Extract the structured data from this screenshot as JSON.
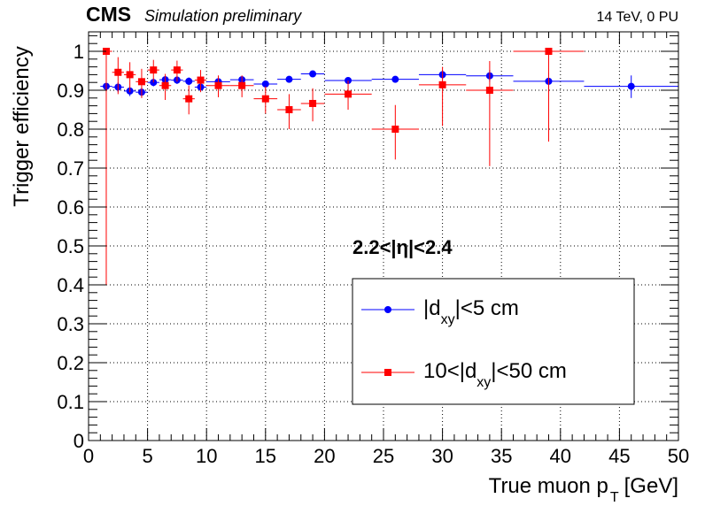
{
  "header": {
    "experiment": "CMS",
    "tag": "Simulation preliminary",
    "conditions": "14 TeV, 0 PU"
  },
  "annotation": "2.2<|η|<2.4",
  "chart_data": {
    "type": "scatter",
    "xlabel_main": "True muon p",
    "xlabel_sub": "T",
    "xlabel_unit": "[GeV]",
    "ylabel": "Trigger efficiency",
    "xlim": [
      0,
      50
    ],
    "ylim": [
      0,
      1.05
    ],
    "xticks": [
      0,
      5,
      10,
      15,
      20,
      25,
      30,
      35,
      40,
      45,
      50
    ],
    "xtick_labels": [
      "0",
      "5",
      "10",
      "15",
      "20",
      "25",
      "30",
      "35",
      "40",
      "45",
      "50"
    ],
    "yticks": [
      0,
      0.1,
      0.2,
      0.3,
      0.4,
      0.5,
      0.6,
      0.7,
      0.8,
      0.9,
      1
    ],
    "ytick_labels": [
      "0",
      "0.1",
      "0.2",
      "0.3",
      "0.4",
      "0.5",
      "0.6",
      "0.7",
      "0.8",
      "0.9",
      "1"
    ],
    "grid": true,
    "legend_position": "bottom-right",
    "series": [
      {
        "legend_main": "|d",
        "legend_sub": "xy",
        "legend_rest": "|<5 cm",
        "color": "#0000ff",
        "marker": "circle",
        "points": [
          {
            "x": 1.5,
            "y": 0.91,
            "xerr": 0.5,
            "ylo": 0.91,
            "yhi": 0.91
          },
          {
            "x": 2.5,
            "y": 0.908,
            "xerr": 0.5,
            "ylo": 0.895,
            "yhi": 0.92
          },
          {
            "x": 3.5,
            "y": 0.898,
            "xerr": 0.5,
            "ylo": 0.885,
            "yhi": 0.91
          },
          {
            "x": 4.5,
            "y": 0.895,
            "xerr": 0.5,
            "ylo": 0.883,
            "yhi": 0.907
          },
          {
            "x": 5.5,
            "y": 0.92,
            "xerr": 0.5,
            "ylo": 0.91,
            "yhi": 0.93
          },
          {
            "x": 6.5,
            "y": 0.927,
            "xerr": 0.5,
            "ylo": 0.918,
            "yhi": 0.936
          },
          {
            "x": 7.5,
            "y": 0.926,
            "xerr": 0.5,
            "ylo": 0.916,
            "yhi": 0.936
          },
          {
            "x": 8.5,
            "y": 0.923,
            "xerr": 0.5,
            "ylo": 0.913,
            "yhi": 0.933
          },
          {
            "x": 9.5,
            "y": 0.908,
            "xerr": 0.5,
            "ylo": 0.898,
            "yhi": 0.918
          },
          {
            "x": 11,
            "y": 0.922,
            "xerr": 1,
            "ylo": 0.914,
            "yhi": 0.93
          },
          {
            "x": 13,
            "y": 0.927,
            "xerr": 1,
            "ylo": 0.919,
            "yhi": 0.935
          },
          {
            "x": 15,
            "y": 0.916,
            "xerr": 1,
            "ylo": 0.908,
            "yhi": 0.924
          },
          {
            "x": 17,
            "y": 0.928,
            "xerr": 1,
            "ylo": 0.92,
            "yhi": 0.936
          },
          {
            "x": 19,
            "y": 0.942,
            "xerr": 1,
            "ylo": 0.934,
            "yhi": 0.95
          },
          {
            "x": 22,
            "y": 0.925,
            "xerr": 2,
            "ylo": 0.917,
            "yhi": 0.933
          },
          {
            "x": 26,
            "y": 0.928,
            "xerr": 2,
            "ylo": 0.92,
            "yhi": 0.936
          },
          {
            "x": 30,
            "y": 0.94,
            "xerr": 2,
            "ylo": 0.928,
            "yhi": 0.952
          },
          {
            "x": 34,
            "y": 0.937,
            "xerr": 2,
            "ylo": 0.922,
            "yhi": 0.952
          },
          {
            "x": 39,
            "y": 0.923,
            "xerr": 3,
            "ylo": 0.895,
            "yhi": 0.945
          },
          {
            "x": 46,
            "y": 0.91,
            "xerr": 4,
            "ylo": 0.88,
            "yhi": 0.938
          }
        ]
      },
      {
        "legend_main": "10<|d",
        "legend_sub": "xy",
        "legend_rest": "|<50 cm",
        "color": "#ff0000",
        "marker": "square",
        "points": [
          {
            "x": 1.5,
            "y": 1.0,
            "xerr": 0.5,
            "ylo": 0.4,
            "yhi": 1.0
          },
          {
            "x": 2.5,
            "y": 0.946,
            "xerr": 0.5,
            "ylo": 0.89,
            "yhi": 0.985
          },
          {
            "x": 3.5,
            "y": 0.94,
            "xerr": 0.5,
            "ylo": 0.895,
            "yhi": 0.972
          },
          {
            "x": 4.5,
            "y": 0.922,
            "xerr": 0.5,
            "ylo": 0.88,
            "yhi": 0.955
          },
          {
            "x": 5.5,
            "y": 0.952,
            "xerr": 0.5,
            "ylo": 0.92,
            "yhi": 0.978
          },
          {
            "x": 6.5,
            "y": 0.912,
            "xerr": 0.5,
            "ylo": 0.875,
            "yhi": 0.942
          },
          {
            "x": 7.5,
            "y": 0.952,
            "xerr": 0.5,
            "ylo": 0.922,
            "yhi": 0.976
          },
          {
            "x": 8.5,
            "y": 0.878,
            "xerr": 0.5,
            "ylo": 0.838,
            "yhi": 0.912
          },
          {
            "x": 9.5,
            "y": 0.926,
            "xerr": 0.5,
            "ylo": 0.895,
            "yhi": 0.952
          },
          {
            "x": 11,
            "y": 0.912,
            "xerr": 1,
            "ylo": 0.882,
            "yhi": 0.938
          },
          {
            "x": 13,
            "y": 0.912,
            "xerr": 1,
            "ylo": 0.882,
            "yhi": 0.938
          },
          {
            "x": 15,
            "y": 0.878,
            "xerr": 1,
            "ylo": 0.84,
            "yhi": 0.91
          },
          {
            "x": 17,
            "y": 0.85,
            "xerr": 1,
            "ylo": 0.8,
            "yhi": 0.89
          },
          {
            "x": 19,
            "y": 0.866,
            "xerr": 1,
            "ylo": 0.82,
            "yhi": 0.905
          },
          {
            "x": 22,
            "y": 0.89,
            "xerr": 2,
            "ylo": 0.85,
            "yhi": 0.925
          },
          {
            "x": 26,
            "y": 0.8,
            "xerr": 2,
            "ylo": 0.722,
            "yhi": 0.862
          },
          {
            "x": 30,
            "y": 0.914,
            "xerr": 2,
            "ylo": 0.808,
            "yhi": 0.96
          },
          {
            "x": 34,
            "y": 0.9,
            "xerr": 2,
            "ylo": 0.705,
            "yhi": 0.975
          },
          {
            "x": 39,
            "y": 1.0,
            "xerr": 3,
            "ylo": 0.768,
            "yhi": 1.0
          }
        ]
      }
    ]
  }
}
